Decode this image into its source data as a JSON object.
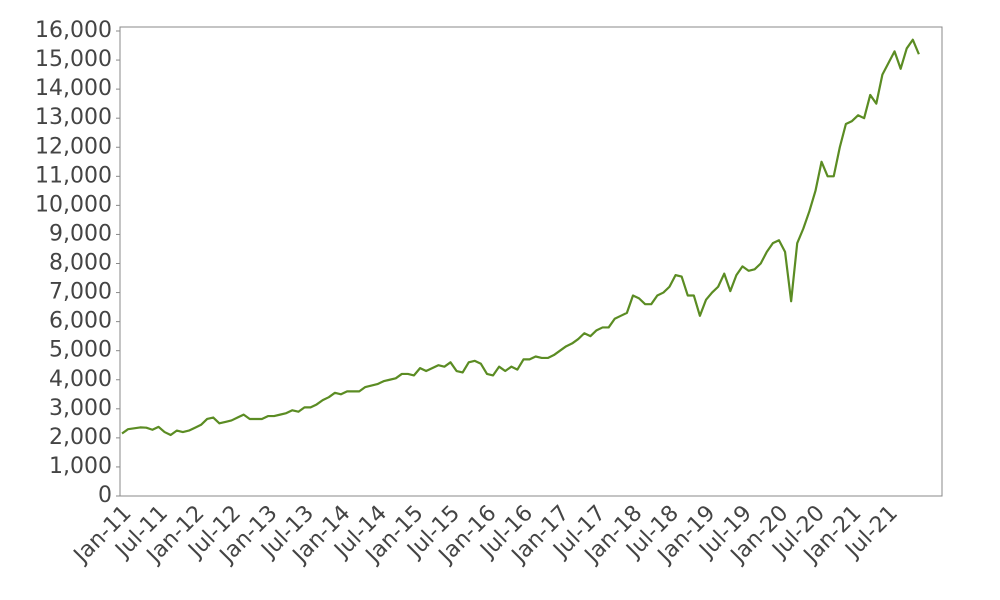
{
  "chart_data": {
    "type": "line",
    "categories": [
      "Jan-11",
      null,
      null,
      null,
      null,
      null,
      "Jul-11",
      null,
      null,
      null,
      null,
      null,
      "Jan-12",
      null,
      null,
      null,
      null,
      null,
      "Jul-12",
      null,
      null,
      null,
      null,
      null,
      "Jan-13",
      null,
      null,
      null,
      null,
      null,
      "Jul-13",
      null,
      null,
      null,
      null,
      null,
      "Jan-14",
      null,
      null,
      null,
      null,
      null,
      "Jul-14",
      null,
      null,
      null,
      null,
      null,
      "Jan-15",
      null,
      null,
      null,
      null,
      null,
      "Jul-15",
      null,
      null,
      null,
      null,
      null,
      "Jan-16",
      null,
      null,
      null,
      null,
      null,
      "Jul-16",
      null,
      null,
      null,
      null,
      null,
      "Jan-17",
      null,
      null,
      null,
      null,
      null,
      "Jul-17",
      null,
      null,
      null,
      null,
      null,
      "Jan-18",
      null,
      null,
      null,
      null,
      null,
      "Jul-18",
      null,
      null,
      null,
      null,
      null,
      "Jan-19",
      null,
      null,
      null,
      null,
      null,
      "Jul-19",
      null,
      null,
      null,
      null,
      null,
      "Jan-20",
      null,
      null,
      null,
      null,
      null,
      "Jul-20",
      null,
      null,
      null,
      null,
      null,
      "Jan-21",
      null,
      null,
      null,
      null,
      null,
      "Jul-21",
      null,
      null,
      null,
      null,
      null
    ],
    "values": [
      2150,
      2300,
      2330,
      2360,
      2350,
      2280,
      2380,
      2200,
      2100,
      2250,
      2200,
      2250,
      2350,
      2450,
      2650,
      2700,
      2500,
      2550,
      2600,
      2700,
      2800,
      2650,
      2650,
      2650,
      2750,
      2750,
      2800,
      2850,
      2950,
      2900,
      3050,
      3050,
      3150,
      3300,
      3400,
      3550,
      3500,
      3600,
      3600,
      3600,
      3750,
      3800,
      3850,
      3950,
      4000,
      4050,
      4200,
      4200,
      4150,
      4400,
      4300,
      4400,
      4500,
      4450,
      4600,
      4300,
      4250,
      4600,
      4650,
      4550,
      4200,
      4150,
      4450,
      4300,
      4450,
      4350,
      4700,
      4700,
      4800,
      4750,
      4750,
      4850,
      5000,
      5150,
      5250,
      5400,
      5600,
      5500,
      5700,
      5800,
      5800,
      6100,
      6200,
      6300,
      6900,
      6800,
      6600,
      6600,
      6900,
      7000,
      7200,
      7600,
      7550,
      6900,
      6900,
      6200,
      6750,
      7000,
      7200,
      7650,
      7050,
      7600,
      7900,
      7750,
      7800,
      8000,
      8400,
      8700,
      8800,
      8400,
      6700,
      8700,
      9200,
      9800,
      10500,
      11500,
      11000,
      11000,
      12000,
      12800,
      12900,
      13100,
      13000,
      13800,
      13500,
      14500,
      14900,
      15300,
      14700,
      15400,
      15700,
      15200
    ],
    "color": "#5b8c23",
    "ylim": [
      0,
      16000
    ],
    "yticks": [
      0,
      {
        "value": 1000,
        "label": "1,000"
      },
      {
        "value": 2000,
        "label": "2,000"
      },
      {
        "value": 3000,
        "label": "3,000"
      },
      {
        "value": 4000,
        "label": "4,000"
      },
      {
        "value": 5000,
        "label": "5,000"
      },
      {
        "value": 6000,
        "label": "6,000"
      },
      {
        "value": 7000,
        "label": "7,000"
      },
      {
        "value": 8000,
        "label": "8,000"
      },
      {
        "value": 9000,
        "label": "9,000"
      },
      {
        "value": 10000,
        "label": "10,000"
      },
      {
        "value": 11000,
        "label": "11,000"
      },
      {
        "value": 12000,
        "label": "12,000"
      },
      {
        "value": 13000,
        "label": "13,000"
      },
      {
        "value": 14000,
        "label": "14,000"
      },
      {
        "value": 15000,
        "label": "15,000"
      },
      {
        "value": 16000,
        "label": "16,000"
      }
    ],
    "grid": false
  }
}
